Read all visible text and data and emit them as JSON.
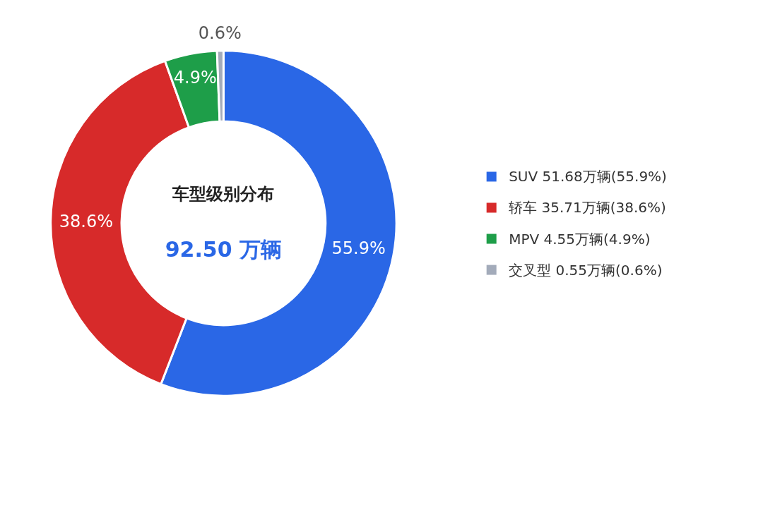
{
  "chart_data": {
    "type": "donut",
    "title": "车型级别分布",
    "annotations": [
      "92.50 万辆"
    ],
    "categories": [
      "SUV  51.68万辆(55.9%)",
      "轿车  35.71万辆(38.6%)",
      "MPV  4.55万辆(4.9%)",
      "交叉型  0.55万辆(0.6%)"
    ],
    "values": [
      55.9,
      38.6,
      4.9,
      0.6
    ],
    "colors": [
      "#2a67e6",
      "#d72a2a",
      "#1e9e49",
      "#a3abba"
    ],
    "value_labels": [
      "55.9%",
      "38.6%",
      "4.9%",
      "0.6%"
    ],
    "legend": "right"
  }
}
